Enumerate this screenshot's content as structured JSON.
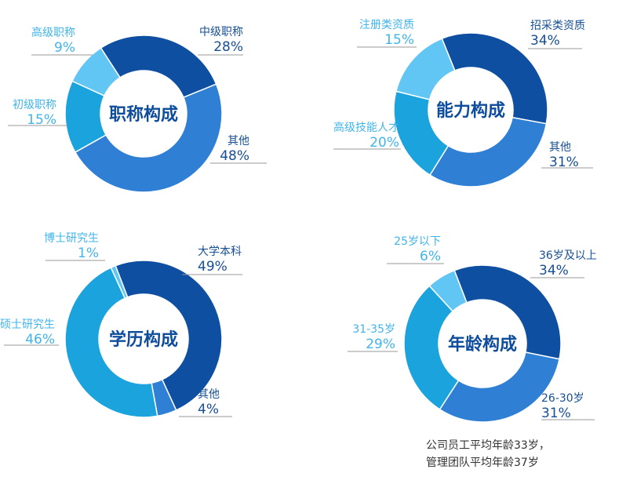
{
  "chart_data": [
    {
      "type": "donut",
      "title": "职称构成",
      "slices": [
        {
          "label": "中级职称",
          "value": 28,
          "display": "28%",
          "color": "#0f4fa2"
        },
        {
          "label": "其他",
          "value": 48,
          "display": "48%",
          "color": "#2f7fd4"
        },
        {
          "label": "初级职称",
          "value": 15,
          "display": "15%",
          "color": "#1aa3dd"
        },
        {
          "label": "高级职称",
          "value": 9,
          "display": "9%",
          "color": "#61c6f3"
        }
      ]
    },
    {
      "type": "donut",
      "title": "能力构成",
      "slices": [
        {
          "label": "招采类资质",
          "value": 34,
          "display": "34%",
          "color": "#0f4fa2"
        },
        {
          "label": "其他",
          "value": 31,
          "display": "31%",
          "color": "#2f7fd4"
        },
        {
          "label": "高级技能人才",
          "value": 20,
          "display": "20%",
          "color": "#1aa3dd"
        },
        {
          "label": "注册类资质",
          "value": 15,
          "display": "15%",
          "color": "#61c6f3"
        }
      ]
    },
    {
      "type": "donut",
      "title": "学历构成",
      "slices": [
        {
          "label": "大学本科",
          "value": 49,
          "display": "49%",
          "color": "#0f4fa2"
        },
        {
          "label": "其他",
          "value": 4,
          "display": "4%",
          "color": "#2f7fd4"
        },
        {
          "label": "硕士研究生",
          "value": 46,
          "display": "46%",
          "color": "#1aa3dd"
        },
        {
          "label": "博士研究生",
          "value": 1,
          "display": "1%",
          "color": "#61c6f3"
        }
      ]
    },
    {
      "type": "donut",
      "title": "年龄构成",
      "slices": [
        {
          "label": "36岁及以上",
          "value": 34,
          "display": "34%",
          "color": "#0f4fa2"
        },
        {
          "label": "26-30岁",
          "value": 31,
          "display": "31%",
          "color": "#2f7fd4"
        },
        {
          "label": "31-35岁",
          "value": 29,
          "display": "29%",
          "color": "#1aa3dd"
        },
        {
          "label": "25岁以下",
          "value": 6,
          "display": "6%",
          "color": "#61c6f3"
        }
      ]
    }
  ],
  "footnote": {
    "line1": "公司员工平均年龄33岁，",
    "line2": "管理团队平均年龄37岁"
  },
  "colors": {
    "title": "#0e4c9c",
    "leader_line": "#9a9a9a",
    "dark_label": "#174f93",
    "light_label": "#41b4ea",
    "background": "#ffffff"
  }
}
